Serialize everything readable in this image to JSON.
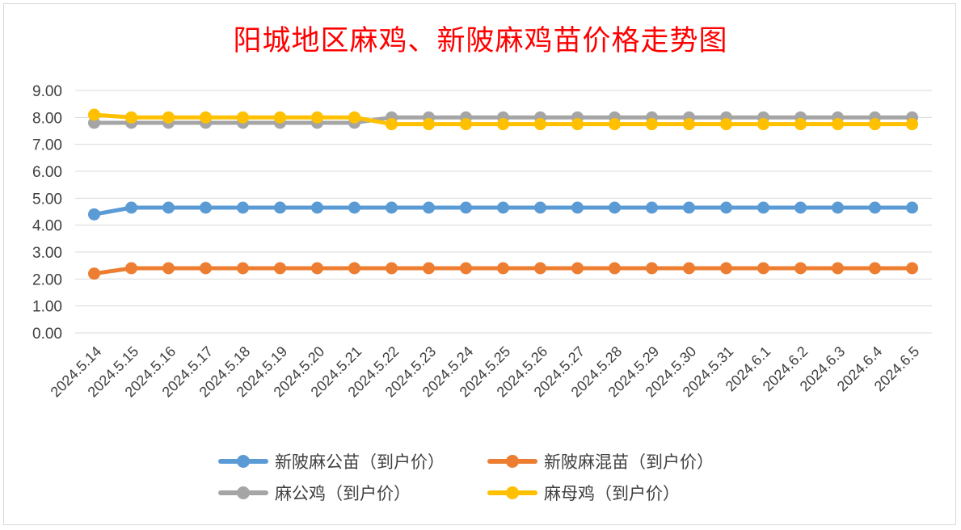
{
  "chart_data": {
    "type": "line",
    "title": "阳城地区麻鸡、新陂麻鸡苗价格走势图",
    "ylim": [
      0,
      9
    ],
    "ytick_step": 1,
    "ytick_labels": [
      "0.00",
      "1.00",
      "2.00",
      "3.00",
      "4.00",
      "5.00",
      "6.00",
      "7.00",
      "8.00",
      "9.00"
    ],
    "grid": true,
    "legend_position": "bottom",
    "categories": [
      "2024.5.14",
      "2024.5.15",
      "2024.5.16",
      "2024.5.17",
      "2024.5.18",
      "2024.5.19",
      "2024.5.20",
      "2024.5.21",
      "2024.5.22",
      "2024.5.23",
      "2024.5.24",
      "2024.5.25",
      "2024.5.26",
      "2024.5.27",
      "2024.5.28",
      "2024.5.29",
      "2024.5.30",
      "2024.5.31",
      "2024.6.1",
      "2024.6.2",
      "2024.6.3",
      "2024.6.4",
      "2024.6.5"
    ],
    "series": [
      {
        "name": "新陂麻公苗（到户价）",
        "color": "#5b9bd5",
        "values": [
          4.4,
          4.65,
          4.65,
          4.65,
          4.65,
          4.65,
          4.65,
          4.65,
          4.65,
          4.65,
          4.65,
          4.65,
          4.65,
          4.65,
          4.65,
          4.65,
          4.65,
          4.65,
          4.65,
          4.65,
          4.65,
          4.65,
          4.65
        ]
      },
      {
        "name": "新陂麻混苗（到户价）",
        "color": "#ed7d31",
        "values": [
          2.2,
          2.4,
          2.4,
          2.4,
          2.4,
          2.4,
          2.4,
          2.4,
          2.4,
          2.4,
          2.4,
          2.4,
          2.4,
          2.4,
          2.4,
          2.4,
          2.4,
          2.4,
          2.4,
          2.4,
          2.4,
          2.4,
          2.4
        ]
      },
      {
        "name": "麻公鸡（到户价）",
        "color": "#a5a5a5",
        "values": [
          7.8,
          7.8,
          7.8,
          7.8,
          7.8,
          7.8,
          7.8,
          7.8,
          8.0,
          8.0,
          8.0,
          8.0,
          8.0,
          8.0,
          8.0,
          8.0,
          8.0,
          8.0,
          8.0,
          8.0,
          8.0,
          8.0,
          8.0
        ]
      },
      {
        "name": "麻母鸡（到户价）",
        "color": "#ffc000",
        "values": [
          8.1,
          8.0,
          8.0,
          8.0,
          8.0,
          8.0,
          8.0,
          8.0,
          7.75,
          7.75,
          7.75,
          7.75,
          7.75,
          7.75,
          7.75,
          7.75,
          7.75,
          7.75,
          7.75,
          7.75,
          7.75,
          7.75,
          7.75
        ]
      }
    ]
  }
}
